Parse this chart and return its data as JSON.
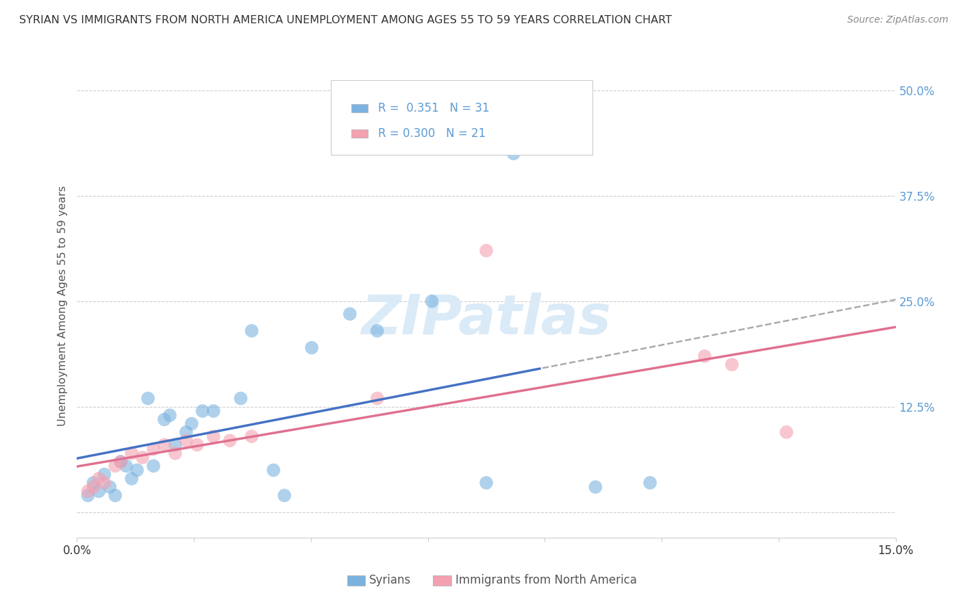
{
  "title": "SYRIAN VS IMMIGRANTS FROM NORTH AMERICA UNEMPLOYMENT AMONG AGES 55 TO 59 YEARS CORRELATION CHART",
  "source": "Source: ZipAtlas.com",
  "ylabel": "Unemployment Among Ages 55 to 59 years",
  "ymax": 52.0,
  "ymin": -3.0,
  "xmax": 15.0,
  "xmin": 0.0,
  "syrians_color": "#7ab3e0",
  "syrians_line_color": "#4472c4",
  "immigrants_color": "#f4a0b0",
  "immigrants_line_color": "#e07090",
  "syrians_R": "0.351",
  "syrians_N": "31",
  "immigrants_R": "0.300",
  "immigrants_N": "21",
  "legend_label1": "Syrians",
  "legend_label2": "Immigrants from North America",
  "syrians_x": [
    0.2,
    0.3,
    0.4,
    0.5,
    0.6,
    0.7,
    0.8,
    0.9,
    1.0,
    1.1,
    1.3,
    1.4,
    1.6,
    1.7,
    1.8,
    2.0,
    2.1,
    2.3,
    2.5,
    3.0,
    3.2,
    3.6,
    3.8,
    4.3,
    5.0,
    5.5,
    6.5,
    7.5,
    8.0,
    9.5,
    10.5
  ],
  "syrians_y": [
    2.0,
    3.5,
    2.5,
    4.5,
    3.0,
    2.0,
    6.0,
    5.5,
    4.0,
    5.0,
    13.5,
    5.5,
    11.0,
    11.5,
    8.0,
    9.5,
    10.5,
    12.0,
    12.0,
    13.5,
    21.5,
    5.0,
    2.0,
    19.5,
    23.5,
    21.5,
    25.0,
    3.5,
    42.5,
    3.0,
    3.5
  ],
  "immigrants_x": [
    0.2,
    0.3,
    0.4,
    0.5,
    0.7,
    0.8,
    1.0,
    1.2,
    1.4,
    1.6,
    1.8,
    2.0,
    2.2,
    2.5,
    2.8,
    3.2,
    5.5,
    7.5,
    11.5,
    12.0,
    13.0
  ],
  "immigrants_y": [
    2.5,
    3.0,
    4.0,
    3.5,
    5.5,
    6.0,
    7.0,
    6.5,
    7.5,
    8.0,
    7.0,
    8.5,
    8.0,
    9.0,
    8.5,
    9.0,
    13.5,
    31.0,
    18.5,
    17.5,
    9.5
  ],
  "bg_color": "#ffffff",
  "grid_color": "#c8c8c8",
  "title_color": "#333333",
  "right_ytick_color": "#5b9bd5",
  "dash_color": "#aaaaaa",
  "watermark_color": "#daeaf7"
}
